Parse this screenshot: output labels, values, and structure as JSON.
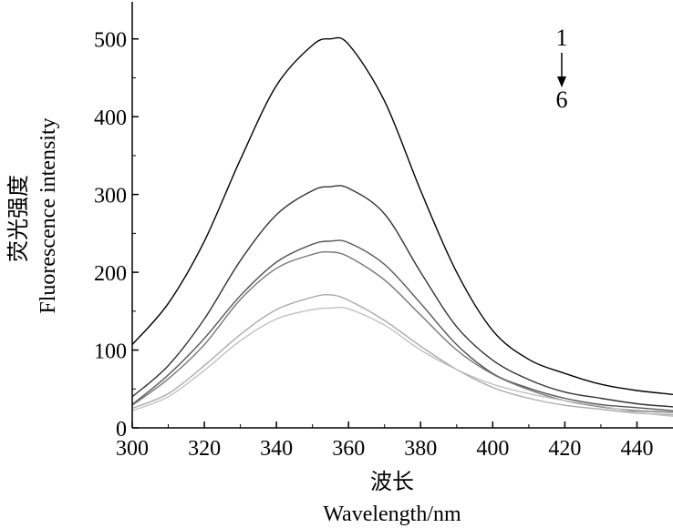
{
  "chart_data": {
    "type": "line",
    "xlabel_cn": "波长",
    "xlabel_en": "Wavelength/nm",
    "ylabel_cn": "荧光强度",
    "ylabel_en": "Fluorescence intensity",
    "xlim": [
      300,
      450
    ],
    "ylim": [
      0,
      550
    ],
    "xticks": [
      300,
      320,
      340,
      360,
      380,
      400,
      420,
      440
    ],
    "yticks": [
      0,
      100,
      200,
      300,
      400,
      500
    ],
    "annotation": {
      "start": "1",
      "end": "6"
    },
    "x": [
      300,
      310,
      320,
      330,
      340,
      350,
      355,
      360,
      370,
      380,
      390,
      400,
      410,
      420,
      430,
      440,
      450
    ],
    "series": [
      {
        "label": "1",
        "color": "#000000",
        "values": [
          107,
          160,
          240,
          345,
          440,
          492,
          500,
          493,
          420,
          305,
          200,
          125,
          88,
          70,
          56,
          48,
          43
        ]
      },
      {
        "label": "2",
        "color": "#333333",
        "values": [
          40,
          80,
          140,
          215,
          274,
          305,
          310,
          308,
          275,
          200,
          130,
          87,
          62,
          46,
          38,
          31,
          27
        ]
      },
      {
        "label": "3",
        "color": "#555555",
        "values": [
          30,
          68,
          115,
          170,
          213,
          236,
          240,
          238,
          210,
          160,
          107,
          70,
          51,
          38,
          30,
          26,
          22
        ]
      },
      {
        "label": "4",
        "color": "#777777",
        "values": [
          29,
          63,
          107,
          165,
          205,
          223,
          226,
          220,
          190,
          145,
          100,
          69,
          49,
          35,
          27,
          22,
          20
        ]
      },
      {
        "label": "5",
        "color": "#aaaaaa",
        "values": [
          25,
          44,
          80,
          120,
          152,
          168,
          171,
          164,
          138,
          105,
          75,
          52,
          38,
          29,
          24,
          19,
          17
        ]
      },
      {
        "label": "6",
        "color": "#c0c0c0",
        "values": [
          22,
          40,
          74,
          112,
          140,
          152,
          154,
          153,
          132,
          100,
          75,
          56,
          44,
          35,
          28,
          20,
          15
        ]
      }
    ]
  }
}
